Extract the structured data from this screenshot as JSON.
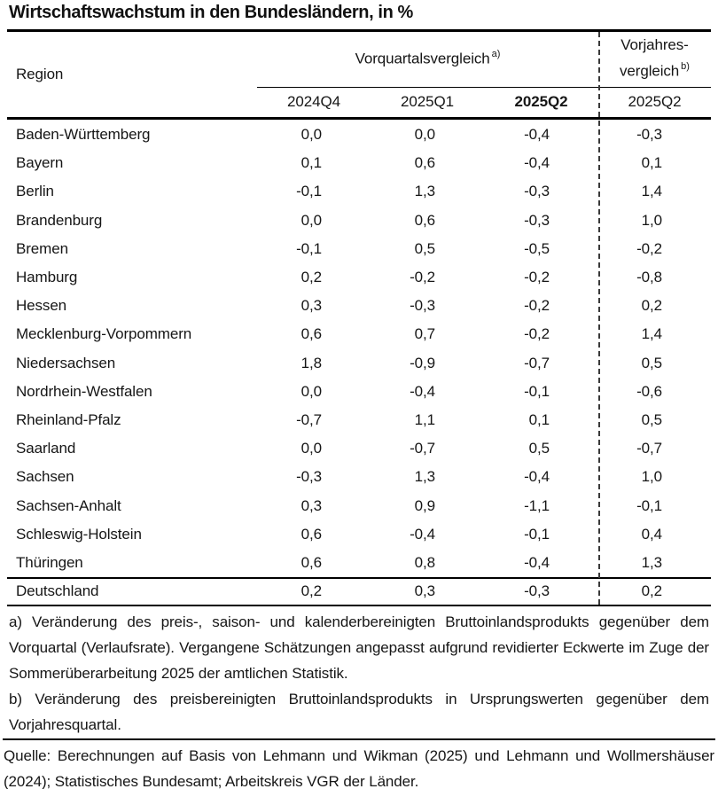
{
  "title": "Wirtschaftswachstum in den Bundesländern, in %",
  "colors": {
    "text": "#161616",
    "lines": "#000000",
    "background": "#ffffff"
  },
  "header": {
    "region": "Region",
    "group1": "Vorquartalsvergleich",
    "group1_note": "a)",
    "group2_line1": "Vorjahres-",
    "group2_line2": "vergleich",
    "group2_note": "b)",
    "quarters": [
      "2024Q4",
      "2025Q1",
      "2025Q2",
      "2025Q2"
    ]
  },
  "table": {
    "rows": [
      {
        "region": "Baden-Württemberg",
        "q": [
          "0,0",
          "0,0",
          "-0,4",
          "-0,3"
        ]
      },
      {
        "region": "Bayern",
        "q": [
          "0,1",
          "0,6",
          "-0,4",
          "0,1"
        ]
      },
      {
        "region": "Berlin",
        "q": [
          "-0,1",
          "1,3",
          "-0,3",
          "1,4"
        ]
      },
      {
        "region": "Brandenburg",
        "q": [
          "0,0",
          "0,6",
          "-0,3",
          "1,0"
        ]
      },
      {
        "region": "Bremen",
        "q": [
          "-0,1",
          "0,5",
          "-0,5",
          "-0,2"
        ]
      },
      {
        "region": "Hamburg",
        "q": [
          "0,2",
          "-0,2",
          "-0,2",
          "-0,8"
        ]
      },
      {
        "region": "Hessen",
        "q": [
          "0,3",
          "-0,3",
          "-0,2",
          "0,2"
        ]
      },
      {
        "region": "Mecklenburg-Vorpommern",
        "q": [
          "0,6",
          "0,7",
          "-0,2",
          "1,4"
        ]
      },
      {
        "region": "Niedersachsen",
        "q": [
          "1,8",
          "-0,9",
          "-0,7",
          "0,5"
        ]
      },
      {
        "region": "Nordrhein-Westfalen",
        "q": [
          "0,0",
          "-0,4",
          "-0,1",
          "-0,6"
        ]
      },
      {
        "region": "Rheinland-Pfalz",
        "q": [
          "-0,7",
          "1,1",
          "0,1",
          "0,5"
        ]
      },
      {
        "region": "Saarland",
        "q": [
          "0,0",
          "-0,7",
          "0,5",
          "-0,7"
        ]
      },
      {
        "region": "Sachsen",
        "q": [
          "-0,3",
          "1,3",
          "-0,4",
          "1,0"
        ]
      },
      {
        "region": "Sachsen-Anhalt",
        "q": [
          "0,3",
          "0,9",
          "-1,1",
          "-0,1"
        ]
      },
      {
        "region": "Schleswig-Holstein",
        "q": [
          "0,6",
          "-0,4",
          "-0,1",
          "0,4"
        ]
      },
      {
        "region": "Thüringen",
        "q": [
          "0,6",
          "0,8",
          "-0,4",
          "1,3"
        ]
      }
    ],
    "total": {
      "region": "Deutschland",
      "q": [
        "0,2",
        "0,3",
        "-0,3",
        "0,2"
      ]
    }
  },
  "footnotes": {
    "a": "a) Veränderung des preis-, saison- und kalenderbereinigten Bruttoinlandsprodukts gegenüber dem Vorquartal (Verlaufsrate). Vergangene Schätzungen angepasst aufgrund revidierter Eckwerte im Zuge der Sommerüberarbeitung 2025 der amtlichen Statistik.",
    "b": "b) Veränderung des preisbereinigten Bruttoinlandsprodukts in Ursprungswerten gegenüber dem Vorjahresquartal."
  },
  "source": "Quelle: Berechnungen auf Basis von Lehmann und Wikman (2025) und Lehmann und Wollmershäuser (2024); Statistisches Bundesamt; Arbeitskreis VGR der Länder.",
  "chart_data": {
    "type": "table",
    "title": "Wirtschaftswachstum in den Bundesländern, in %",
    "unit": "percent",
    "decimal_format": "german-comma",
    "columns": [
      "Region",
      "Vorquartalsvergleich 2024Q4",
      "Vorquartalsvergleich 2025Q1",
      "Vorquartalsvergleich 2025Q2",
      "Vorjahresvergleich 2025Q2"
    ],
    "rows": [
      [
        "Baden-Württemberg",
        0.0,
        0.0,
        -0.4,
        -0.3
      ],
      [
        "Bayern",
        0.1,
        0.6,
        -0.4,
        0.1
      ],
      [
        "Berlin",
        -0.1,
        1.3,
        -0.3,
        1.4
      ],
      [
        "Brandenburg",
        0.0,
        0.6,
        -0.3,
        1.0
      ],
      [
        "Bremen",
        -0.1,
        0.5,
        -0.5,
        -0.2
      ],
      [
        "Hamburg",
        0.2,
        -0.2,
        -0.2,
        -0.8
      ],
      [
        "Hessen",
        0.3,
        -0.3,
        -0.2,
        0.2
      ],
      [
        "Mecklenburg-Vorpommern",
        0.6,
        0.7,
        -0.2,
        1.4
      ],
      [
        "Niedersachsen",
        1.8,
        -0.9,
        -0.7,
        0.5
      ],
      [
        "Nordrhein-Westfalen",
        0.0,
        -0.4,
        -0.1,
        -0.6
      ],
      [
        "Rheinland-Pfalz",
        -0.7,
        1.1,
        0.1,
        0.5
      ],
      [
        "Saarland",
        0.0,
        -0.7,
        0.5,
        -0.7
      ],
      [
        "Sachsen",
        -0.3,
        1.3,
        -0.4,
        1.0
      ],
      [
        "Sachsen-Anhalt",
        0.3,
        0.9,
        -1.1,
        -0.1
      ],
      [
        "Schleswig-Holstein",
        0.6,
        -0.4,
        -0.1,
        0.4
      ],
      [
        "Thüringen",
        0.6,
        0.8,
        -0.4,
        1.3
      ],
      [
        "Deutschland",
        0.2,
        0.3,
        -0.3,
        0.2
      ]
    ]
  }
}
